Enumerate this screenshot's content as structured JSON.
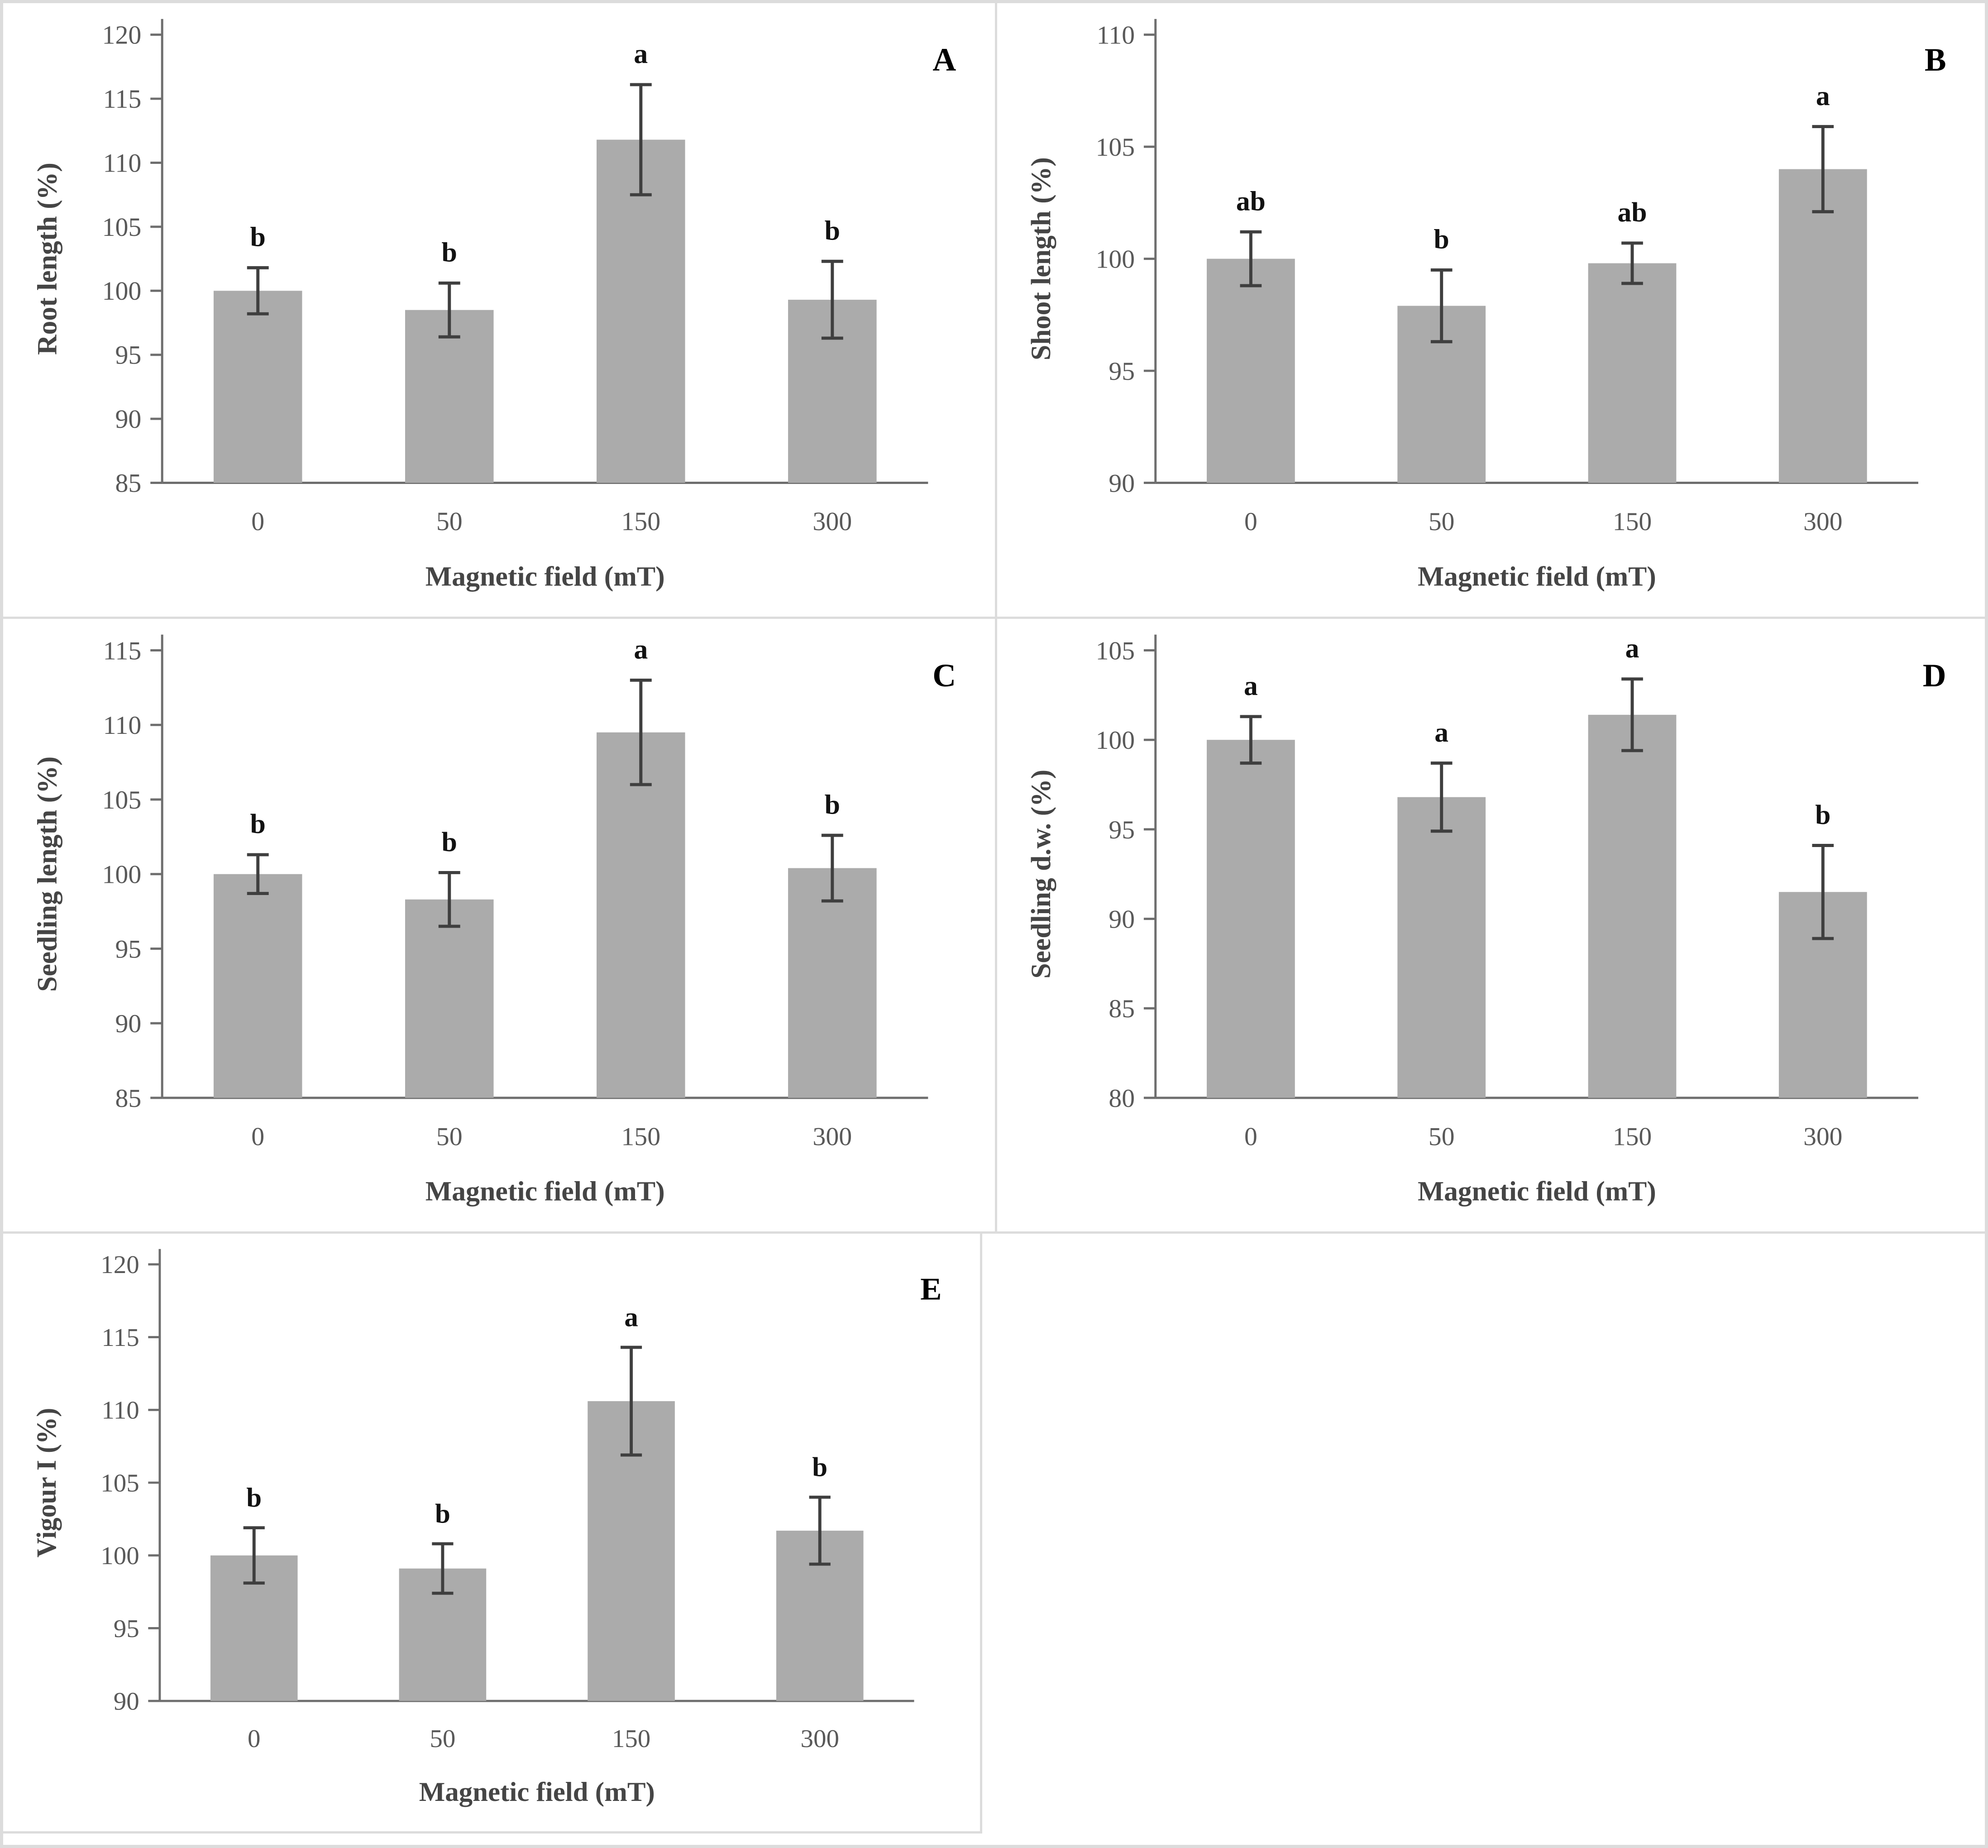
{
  "figure": {
    "xlabel": "Magnetic field (mT)",
    "categories": [
      "0",
      "50",
      "150",
      "300"
    ],
    "panel_labels": [
      "A",
      "B",
      "C",
      "D",
      "E"
    ]
  },
  "style": {
    "bar_color": "#ababab",
    "error_bar_color": "#3f3f3f",
    "axis_color": "#6e6e6e",
    "tick_text_color": "#595959",
    "axis_title_color": "#454545",
    "panel_letter_color": "#000000",
    "border_color": "#dcdcdc",
    "background": "#ffffff"
  },
  "chart_data": [
    {
      "type": "bar",
      "panel": "A",
      "ylabel": "Root length (%)",
      "xlabel": "Magnetic field (mT)",
      "categories": [
        "0",
        "50",
        "150",
        "300"
      ],
      "values": [
        100.0,
        98.5,
        111.8,
        99.3
      ],
      "errors": [
        1.8,
        2.1,
        4.3,
        3.0
      ],
      "sig_letters": [
        "b",
        "b",
        "a",
        "b"
      ],
      "ylim": [
        85,
        120
      ],
      "yticks": [
        85,
        90,
        95,
        100,
        105,
        110,
        115,
        120
      ],
      "grid": false,
      "legend": false
    },
    {
      "type": "bar",
      "panel": "B",
      "ylabel": "Shoot length (%)",
      "xlabel": "Magnetic field (mT)",
      "categories": [
        "0",
        "50",
        "150",
        "300"
      ],
      "values": [
        100.0,
        97.9,
        99.8,
        104.0
      ],
      "errors": [
        1.2,
        1.6,
        0.9,
        1.9
      ],
      "sig_letters": [
        "ab",
        "b",
        "ab",
        "a"
      ],
      "ylim": [
        90,
        110
      ],
      "yticks": [
        90,
        95,
        100,
        105,
        110
      ],
      "grid": false,
      "legend": false
    },
    {
      "type": "bar",
      "panel": "C",
      "ylabel": "Seedling length (%)",
      "xlabel": "Magnetic field (mT)",
      "categories": [
        "0",
        "50",
        "150",
        "300"
      ],
      "values": [
        100.0,
        98.3,
        109.5,
        100.4
      ],
      "errors": [
        1.3,
        1.8,
        3.5,
        2.2
      ],
      "sig_letters": [
        "b",
        "b",
        "a",
        "b"
      ],
      "ylim": [
        85,
        115
      ],
      "yticks": [
        85,
        90,
        95,
        100,
        105,
        110,
        115
      ],
      "grid": false,
      "legend": false
    },
    {
      "type": "bar",
      "panel": "D",
      "ylabel": "Seedling d.w. (%)",
      "xlabel": "Magnetic field (mT)",
      "categories": [
        "0",
        "50",
        "150",
        "300"
      ],
      "values": [
        100.0,
        96.8,
        101.4,
        91.5
      ],
      "errors": [
        1.3,
        1.9,
        2.0,
        2.6
      ],
      "sig_letters": [
        "a",
        "a",
        "a",
        "b"
      ],
      "ylim": [
        80,
        105
      ],
      "yticks": [
        80,
        85,
        90,
        95,
        100,
        105
      ],
      "grid": false,
      "legend": false
    },
    {
      "type": "bar",
      "panel": "E",
      "ylabel": "Vigour I (%)",
      "xlabel": "Magnetic field (mT)",
      "categories": [
        "0",
        "50",
        "150",
        "300"
      ],
      "values": [
        100.0,
        99.1,
        110.6,
        101.7
      ],
      "errors": [
        1.9,
        1.7,
        3.7,
        2.3
      ],
      "sig_letters": [
        "b",
        "b",
        "a",
        "b"
      ],
      "ylim": [
        90,
        120
      ],
      "yticks": [
        90,
        95,
        100,
        105,
        110,
        115,
        120
      ],
      "grid": false,
      "legend": false
    }
  ]
}
